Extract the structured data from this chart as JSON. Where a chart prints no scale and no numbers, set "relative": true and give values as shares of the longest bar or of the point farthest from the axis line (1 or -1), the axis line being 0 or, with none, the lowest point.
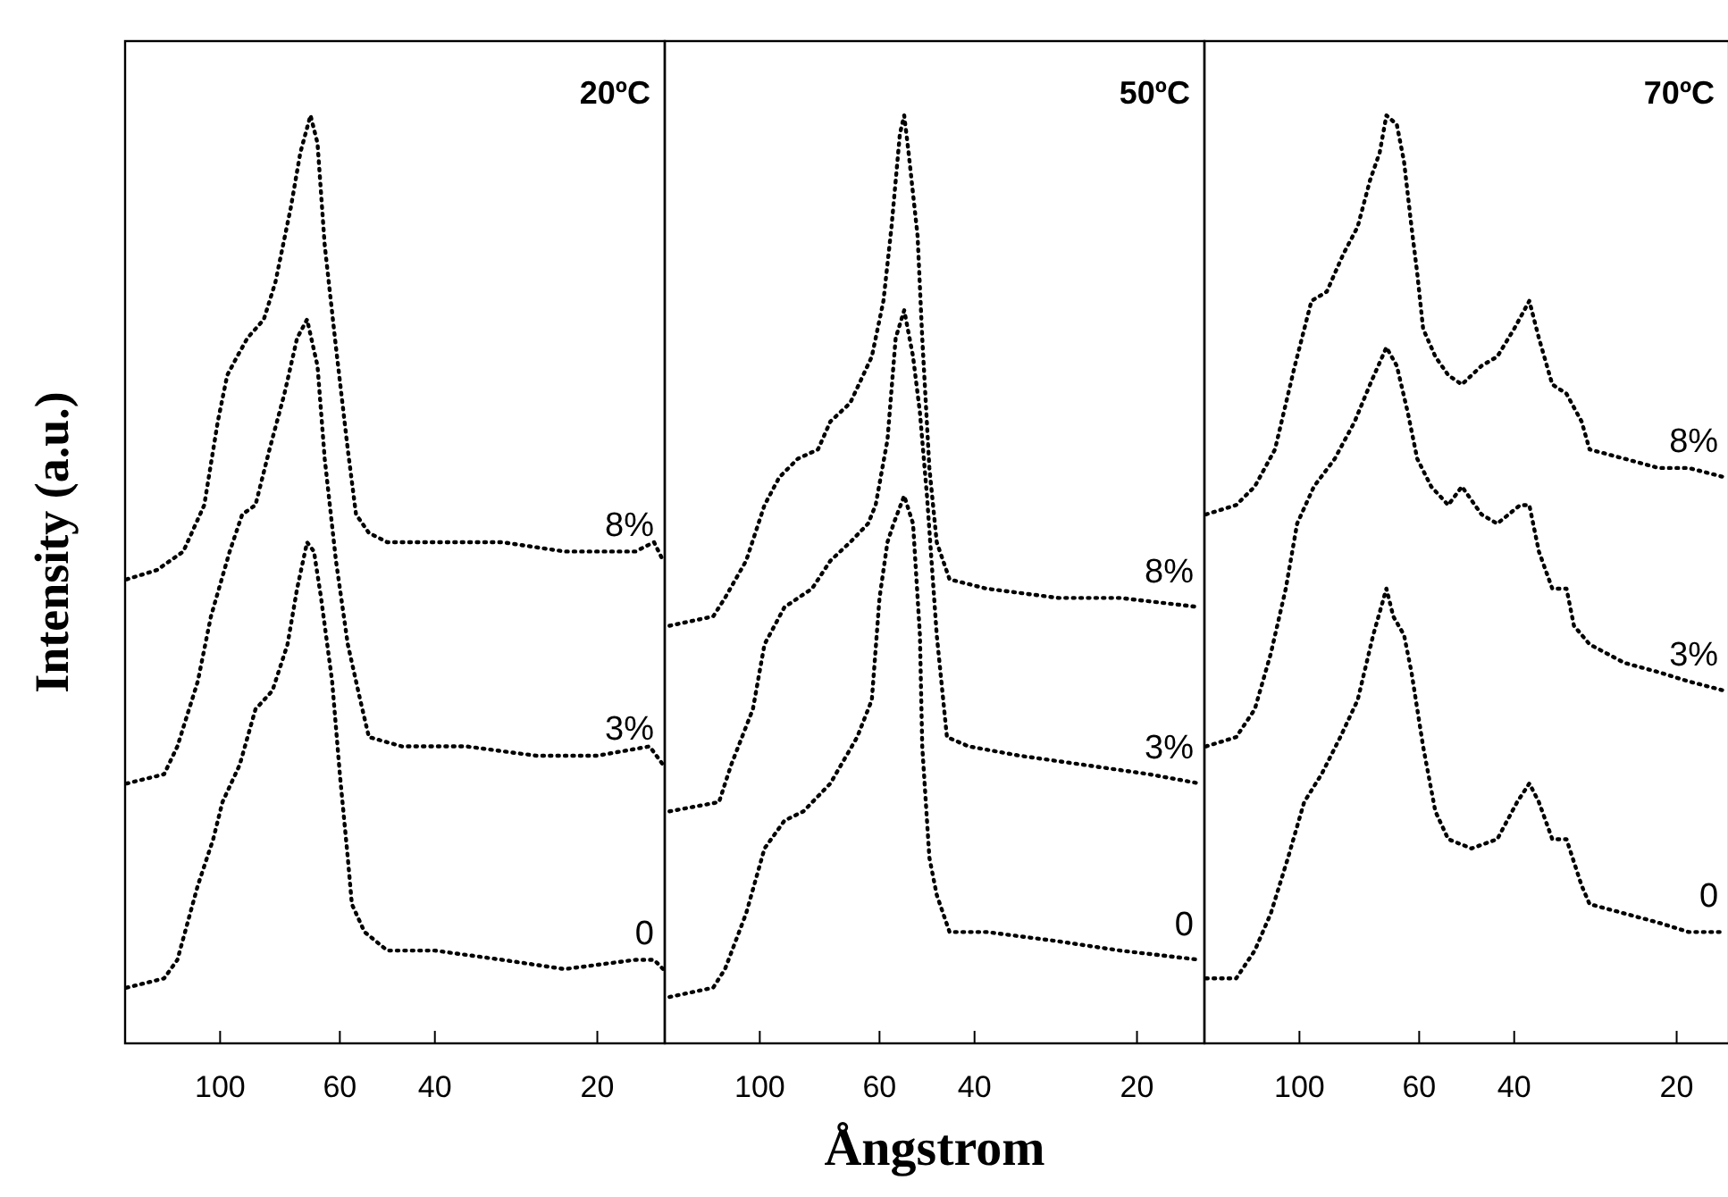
{
  "chart_data": [
    {
      "type": "line",
      "title": "20ºC",
      "ylabel": "Intensity (a.u.)",
      "relative": true,
      "log": "x",
      "xlim": [
        150,
        15
      ],
      "xticks": [
        100,
        60,
        40,
        20
      ],
      "line_style": "dotted",
      "series": [
        {
          "name": "8%",
          "color": "#000000",
          "x": [
            149,
            131,
            117,
            107,
            101,
            97,
            93,
            89,
            83,
            79,
            74,
            71,
            68,
            66,
            64,
            61,
            58,
            56,
            53,
            49,
            40,
            30,
            23,
            17,
            15.7,
            15.1
          ],
          "values": [
            0.5,
            0.51,
            0.53,
            0.58,
            0.67,
            0.72,
            0.74,
            0.76,
            0.78,
            0.82,
            0.9,
            0.96,
            1.0,
            0.97,
            0.86,
            0.75,
            0.64,
            0.57,
            0.55,
            0.54,
            0.54,
            0.54,
            0.53,
            0.53,
            0.54,
            0.52
          ]
        },
        {
          "name": "3%",
          "color": "#000000",
          "x": [
            149,
            127,
            120,
            110,
            104,
            96,
            91,
            86,
            81,
            76,
            72,
            69,
            66,
            64,
            61,
            58,
            55,
            53,
            46,
            35,
            26,
            20,
            16,
            15.1
          ],
          "values": [
            0.28,
            0.29,
            0.32,
            0.39,
            0.46,
            0.53,
            0.57,
            0.58,
            0.64,
            0.7,
            0.76,
            0.78,
            0.73,
            0.63,
            0.52,
            0.43,
            0.37,
            0.33,
            0.32,
            0.32,
            0.31,
            0.31,
            0.32,
            0.3
          ]
        },
        {
          "name": "0",
          "color": "#000000",
          "x": [
            149,
            127,
            120,
            110,
            103,
            99,
            92,
            86,
            80,
            75,
            72,
            69,
            67,
            65,
            62,
            60,
            58,
            57,
            54,
            49,
            40,
            30,
            23,
            17,
            15.7,
            15.1
          ],
          "values": [
            0.06,
            0.07,
            0.09,
            0.17,
            0.22,
            0.26,
            0.3,
            0.36,
            0.38,
            0.43,
            0.49,
            0.54,
            0.53,
            0.48,
            0.39,
            0.29,
            0.2,
            0.15,
            0.12,
            0.1,
            0.1,
            0.09,
            0.08,
            0.09,
            0.09,
            0.08
          ]
        }
      ]
    },
    {
      "type": "line",
      "title": "50ºC",
      "xlabel": "Ångstrom",
      "relative": true,
      "log": "x",
      "xlim": [
        150,
        15
      ],
      "xticks": [
        100,
        60,
        40,
        20
      ],
      "line_style": "dotted",
      "series": [
        {
          "name": "8%",
          "color": "#000000",
          "x": [
            147,
            122,
            116,
            106,
            98,
            92,
            85,
            78,
            74,
            68,
            62,
            59,
            57,
            55,
            54,
            53,
            51,
            50,
            48.5,
            47,
            44.5,
            38,
            28,
            21.5,
            15.3
          ],
          "values": [
            0.45,
            0.46,
            0.48,
            0.52,
            0.58,
            0.61,
            0.63,
            0.64,
            0.67,
            0.69,
            0.74,
            0.8,
            0.88,
            0.98,
            1.0,
            0.96,
            0.87,
            0.76,
            0.62,
            0.54,
            0.5,
            0.49,
            0.48,
            0.48,
            0.47
          ]
        },
        {
          "name": "3%",
          "color": "#000000",
          "x": [
            147,
            119,
            113,
            103,
            98,
            90,
            80,
            74,
            68,
            63,
            61,
            58,
            56,
            54,
            52,
            50.5,
            49,
            47,
            45,
            41,
            33,
            25,
            19,
            15.3
          ],
          "values": [
            0.25,
            0.26,
            0.3,
            0.36,
            0.43,
            0.47,
            0.49,
            0.52,
            0.54,
            0.56,
            0.58,
            0.65,
            0.76,
            0.79,
            0.74,
            0.68,
            0.59,
            0.44,
            0.33,
            0.32,
            0.31,
            0.3,
            0.29,
            0.28
          ]
        },
        {
          "name": "0",
          "color": "#000000",
          "x": [
            147,
            122,
            116,
            106,
            98,
            90,
            83,
            74,
            66,
            62,
            60,
            58,
            56.5,
            54,
            52,
            50.5,
            50,
            48.5,
            47,
            44.5,
            38,
            28,
            21.5,
            15.3
          ],
          "values": [
            0.05,
            0.06,
            0.08,
            0.14,
            0.21,
            0.24,
            0.25,
            0.28,
            0.33,
            0.37,
            0.48,
            0.54,
            0.56,
            0.59,
            0.56,
            0.44,
            0.32,
            0.2,
            0.16,
            0.12,
            0.12,
            0.11,
            0.1,
            0.09
          ]
        }
      ]
    },
    {
      "type": "line",
      "title": "70ºC",
      "relative": true,
      "log": "x",
      "xlim": [
        150,
        16
      ],
      "xticks": [
        100,
        60,
        40,
        20
      ],
      "line_style": "dotted",
      "series": [
        {
          "name": "8%",
          "color": "#000000",
          "x": [
            149,
            131,
            121,
            111,
            102,
            95,
            89,
            83,
            78,
            74,
            71,
            69,
            66,
            64,
            62,
            60.5,
            59,
            56,
            53,
            50,
            46,
            43,
            40,
            37.5,
            36,
            34,
            32,
            30,
            29,
            25,
            21.6,
            19,
            16.3
          ],
          "values": [
            0.57,
            0.58,
            0.6,
            0.64,
            0.73,
            0.8,
            0.81,
            0.85,
            0.88,
            0.93,
            0.96,
            1.0,
            0.99,
            0.95,
            0.88,
            0.83,
            0.77,
            0.74,
            0.72,
            0.71,
            0.73,
            0.74,
            0.77,
            0.8,
            0.76,
            0.71,
            0.7,
            0.67,
            0.64,
            0.63,
            0.62,
            0.62,
            0.61
          ]
        },
        {
          "name": "3%",
          "color": "#000000",
          "x": [
            149,
            131,
            121,
            113,
            106,
            101,
            94,
            86,
            79,
            74,
            69,
            66,
            63,
            60.5,
            57,
            53,
            50,
            46,
            43,
            39,
            37.5,
            36,
            34,
            32,
            31,
            29,
            25,
            21.6,
            19,
            16.3
          ],
          "values": [
            0.32,
            0.33,
            0.36,
            0.42,
            0.49,
            0.56,
            0.6,
            0.63,
            0.67,
            0.71,
            0.75,
            0.73,
            0.68,
            0.63,
            0.6,
            0.58,
            0.6,
            0.57,
            0.56,
            0.58,
            0.58,
            0.53,
            0.49,
            0.49,
            0.45,
            0.43,
            0.41,
            0.4,
            0.39,
            0.38
          ]
        },
        {
          "name": "0",
          "color": "#000000",
          "x": [
            149,
            131,
            121,
            113,
            105,
            98,
            91,
            84,
            78,
            73,
            69,
            67,
            64,
            62,
            59,
            56,
            53,
            48,
            43,
            39.5,
            37.5,
            36,
            34,
            32,
            30,
            29,
            25,
            21.6,
            19,
            16.3
          ],
          "values": [
            0.07,
            0.07,
            0.1,
            0.14,
            0.2,
            0.26,
            0.29,
            0.33,
            0.37,
            0.44,
            0.49,
            0.46,
            0.44,
            0.4,
            0.32,
            0.25,
            0.22,
            0.21,
            0.22,
            0.26,
            0.28,
            0.26,
            0.22,
            0.22,
            0.17,
            0.15,
            0.14,
            0.13,
            0.12,
            0.12
          ]
        }
      ]
    }
  ]
}
